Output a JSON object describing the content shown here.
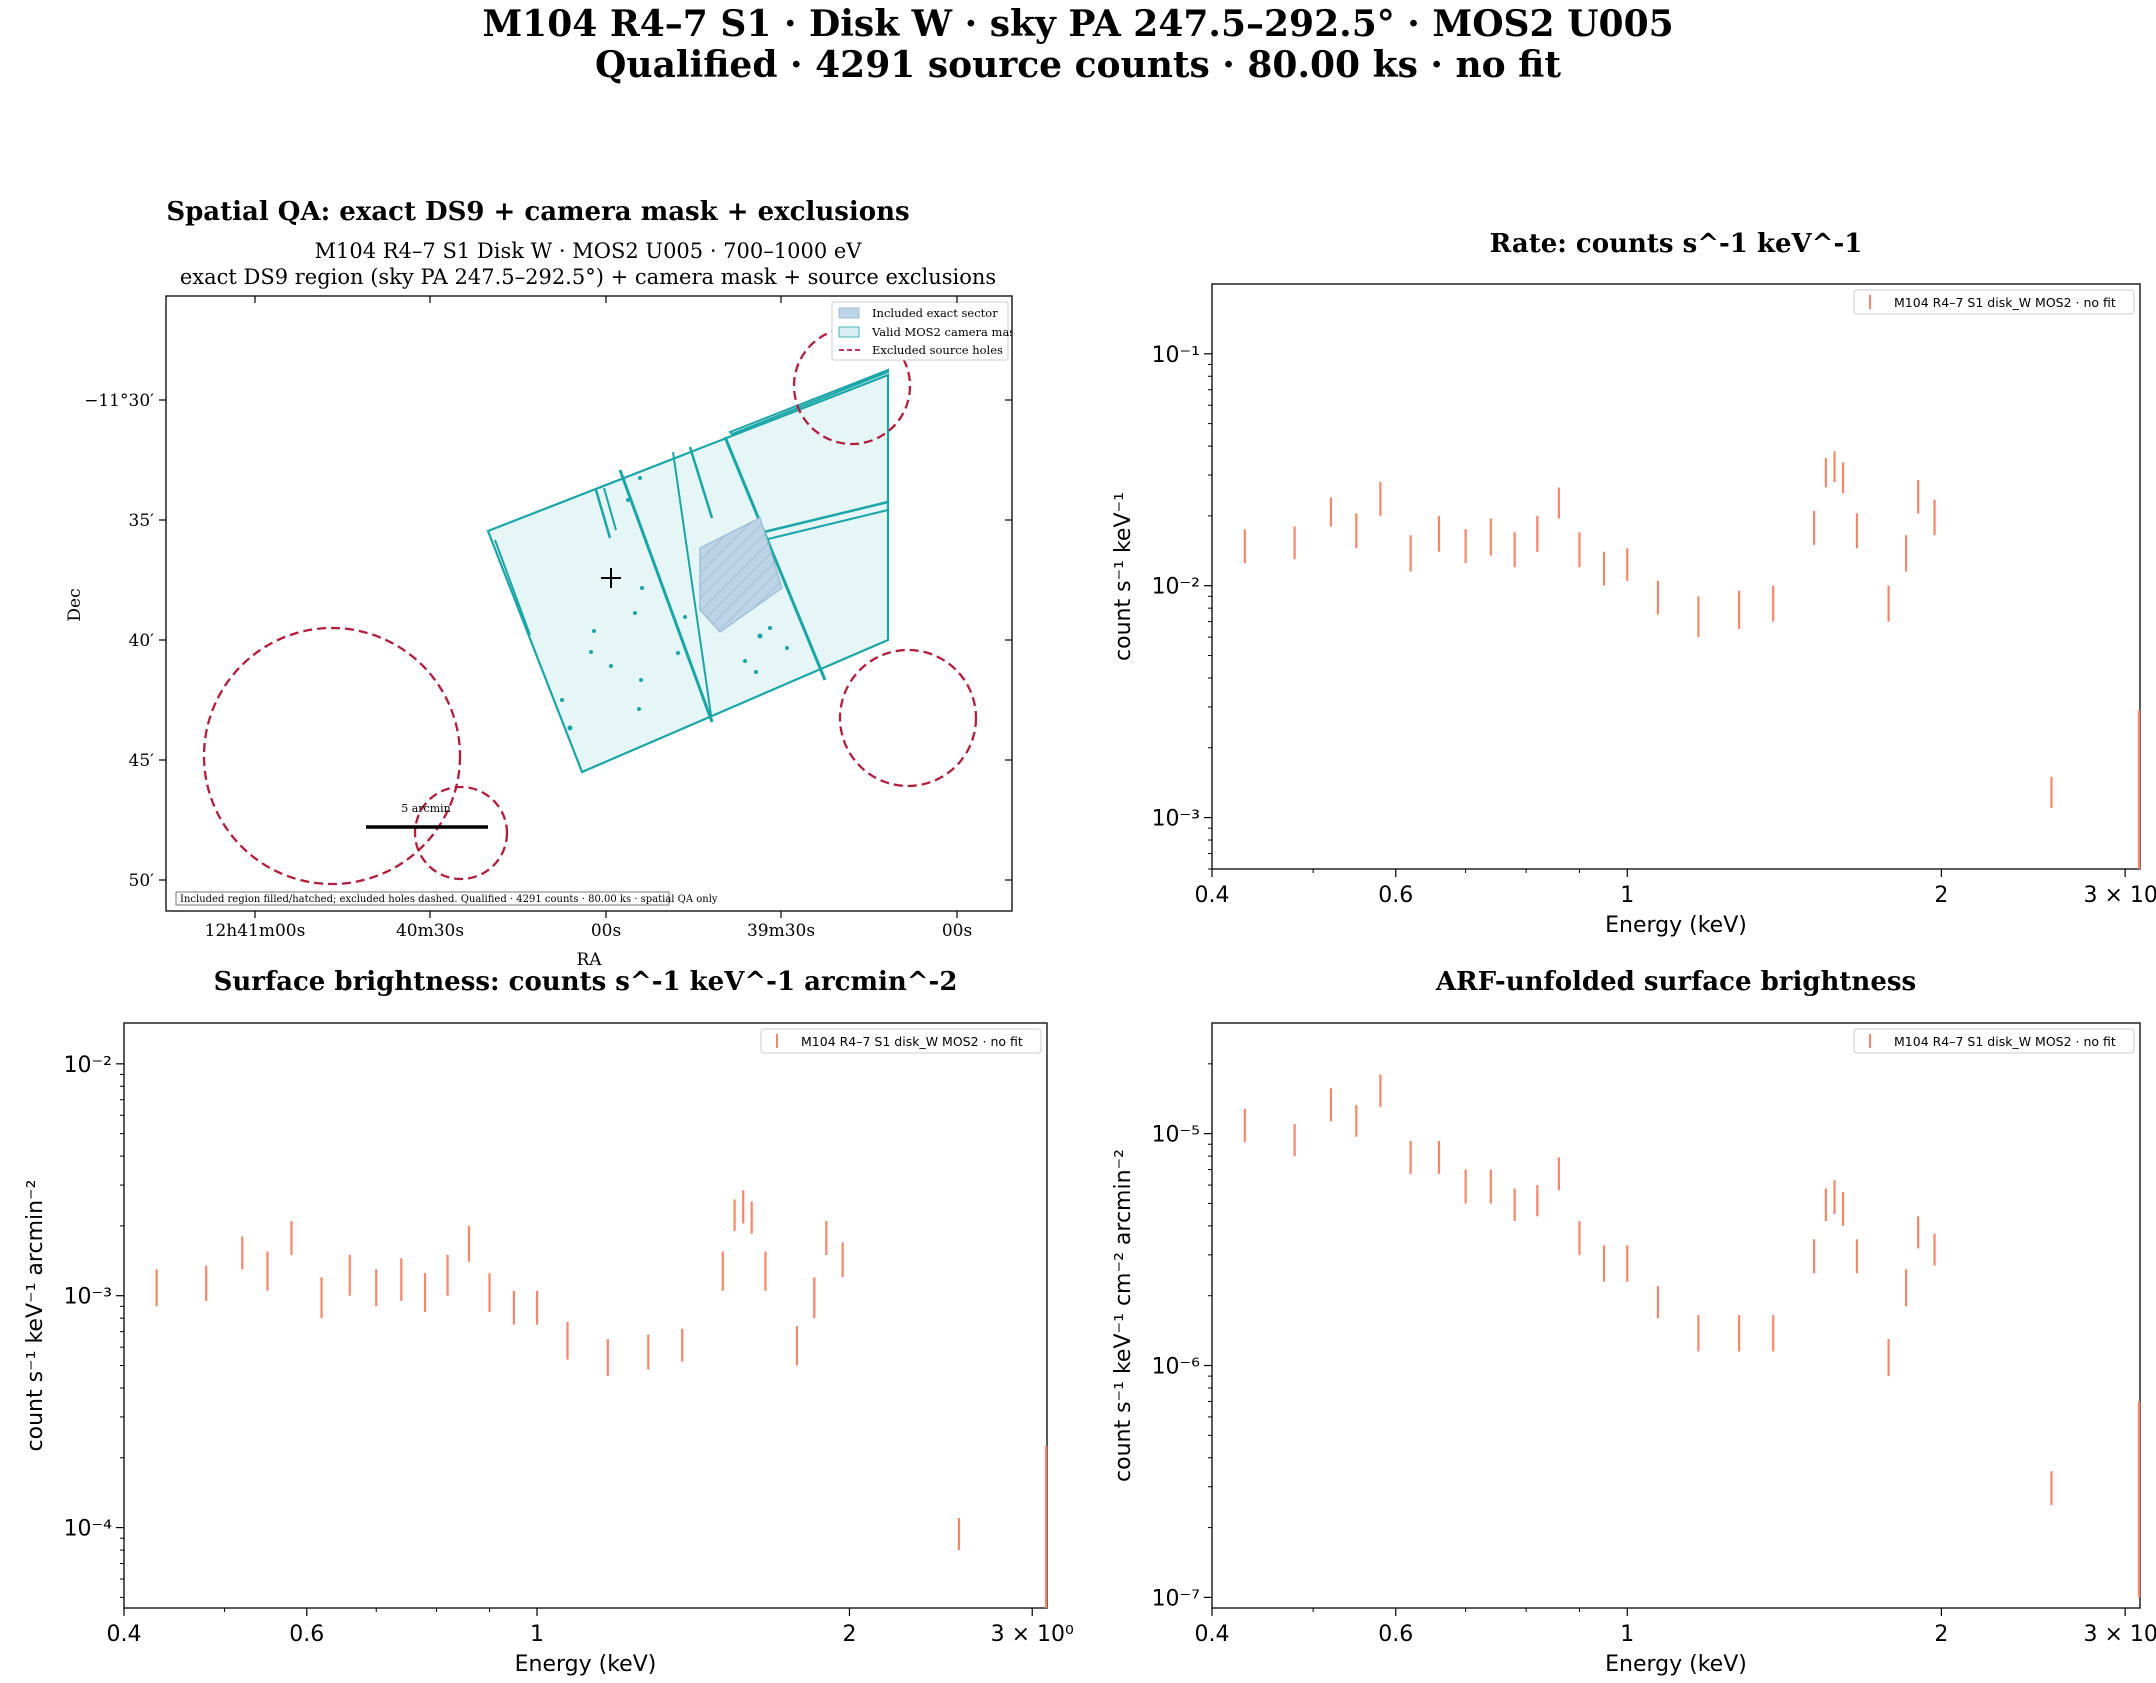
{
  "figure": {
    "title_line1": "M104 R4–7 S1 · Disk W · sky PA 247.5–292.5° · MOS2 U005",
    "title_line2": "Qualified · 4291 source counts · 80.00 ks · no fit"
  },
  "spatial_qa": {
    "title": "Spatial QA: exact DS9 + camera mask + exclusions",
    "subtitle_line1": "M104 R4–7 S1 Disk W · MOS2 U005 · 700–1000 eV",
    "subtitle_line2": "exact DS9 region (sky PA 247.5–292.5°) + camera mask + source exclusions",
    "xlabel": "RA",
    "ylabel": "Dec",
    "ra_ticks": [
      "12h41m00s",
      "40m30s",
      "00s",
      "39m30s",
      "00s"
    ],
    "dec_ticks": [
      "−11°30′",
      "35′",
      "40′",
      "45′",
      "50′"
    ],
    "legend": [
      "Included exact sector",
      "Valid MOS2 camera mask",
      "Excluded source holes"
    ],
    "scalebar_label": "5 arcmin",
    "footnote": "Included region filled/hatched; excluded holes dashed. Qualified · 4291 counts · 80.00 ks · spatial QA only",
    "colors": {
      "mask": "#1aa6a8",
      "mask_fill": "#e6f5f5",
      "sector": "#9fc1d9",
      "holes": "#b01e3c"
    }
  },
  "chart_data": [
    {
      "type": "scatter",
      "title": "Rate: counts s^-1 keV^-1",
      "xlabel": "Energy (keV)",
      "ylabel": "count s⁻¹ keV⁻¹",
      "xscale": "log",
      "yscale": "log",
      "xlim": [
        0.4,
        3.1
      ],
      "ylim": [
        0.0006,
        0.2
      ],
      "x_ticks": [
        "0.4",
        "0.6",
        "1",
        "2",
        "3 × 10⁰"
      ],
      "y_ticks": [
        "10⁻¹",
        "10⁻²",
        "10⁻³"
      ],
      "legend_position": "top-right",
      "series": [
        {
          "name": "M104 R4–7 S1 disk_W MOS2 · no fit",
          "color": "#f4866a",
          "x": [
            0.43,
            0.48,
            0.52,
            0.55,
            0.58,
            0.62,
            0.66,
            0.7,
            0.74,
            0.78,
            0.82,
            0.86,
            0.9,
            0.95,
            1.0,
            1.07,
            1.17,
            1.28,
            1.38,
            1.51,
            1.55,
            1.58,
            1.61,
            1.66,
            1.78,
            1.85,
            1.9,
            1.97,
            2.55,
            3.1
          ],
          "y": [
            0.015,
            0.0155,
            0.021,
            0.0175,
            0.024,
            0.014,
            0.017,
            0.015,
            0.0165,
            0.0145,
            0.017,
            0.023,
            0.0145,
            0.012,
            0.0125,
            0.009,
            0.0075,
            0.008,
            0.0085,
            0.018,
            0.031,
            0.033,
            0.0295,
            0.0175,
            0.0085,
            0.014,
            0.0245,
            0.02,
            0.0013,
            0.0017
          ],
          "yerr_low": [
            0.0025,
            0.0025,
            0.003,
            0.003,
            0.004,
            0.0025,
            0.003,
            0.0025,
            0.003,
            0.0025,
            0.003,
            0.0035,
            0.0025,
            0.002,
            0.002,
            0.0015,
            0.0015,
            0.0015,
            0.0015,
            0.003,
            0.0045,
            0.005,
            0.0045,
            0.003,
            0.0015,
            0.0025,
            0.004,
            0.0035,
            0.0002,
            0.0011
          ],
          "yerr_high": [
            0.0025,
            0.0025,
            0.003,
            0.003,
            0.004,
            0.0025,
            0.003,
            0.0025,
            0.003,
            0.0025,
            0.003,
            0.0035,
            0.0025,
            0.002,
            0.002,
            0.0015,
            0.0015,
            0.0015,
            0.0015,
            0.003,
            0.0045,
            0.005,
            0.0045,
            0.003,
            0.0015,
            0.0025,
            0.004,
            0.0035,
            0.0002,
            0.0012
          ]
        }
      ]
    },
    {
      "type": "scatter",
      "title": "Surface brightness: counts s^-1 keV^-1 arcmin^-2",
      "xlabel": "Energy (keV)",
      "ylabel": "count s⁻¹ keV⁻¹ arcmin⁻²",
      "xscale": "log",
      "yscale": "log",
      "xlim": [
        0.4,
        3.1
      ],
      "ylim": [
        4.5e-05,
        0.015
      ],
      "x_ticks": [
        "0.4",
        "0.6",
        "1",
        "2",
        "3 × 10⁰"
      ],
      "y_ticks": [
        "10⁻²",
        "10⁻³",
        "10⁻⁴"
      ],
      "legend_position": "top-right",
      "series": [
        {
          "name": "M104 R4–7 S1 disk_W MOS2 · no fit",
          "color": "#f4866a",
          "x": [
            0.43,
            0.48,
            0.52,
            0.55,
            0.58,
            0.62,
            0.66,
            0.7,
            0.74,
            0.78,
            0.82,
            0.86,
            0.9,
            0.95,
            1.0,
            1.07,
            1.17,
            1.28,
            1.38,
            1.51,
            1.55,
            1.58,
            1.61,
            1.66,
            1.78,
            1.85,
            1.9,
            1.97,
            2.55,
            3.1
          ],
          "y": [
            0.0011,
            0.00115,
            0.00155,
            0.0013,
            0.0018,
            0.001,
            0.00125,
            0.0011,
            0.0012,
            0.00105,
            0.00125,
            0.0017,
            0.00105,
            0.0009,
            0.0009,
            0.00065,
            0.00055,
            0.00058,
            0.00062,
            0.0013,
            0.00225,
            0.00245,
            0.0022,
            0.0013,
            0.00062,
            0.001,
            0.0018,
            0.00145,
            9.5e-05,
            0.000125
          ],
          "yerr_low": [
            0.0002,
            0.0002,
            0.00025,
            0.00025,
            0.0003,
            0.0002,
            0.00025,
            0.0002,
            0.00025,
            0.0002,
            0.00025,
            0.0003,
            0.0002,
            0.00015,
            0.00015,
            0.00012,
            0.0001,
            0.0001,
            0.0001,
            0.00025,
            0.00035,
            0.0004,
            0.00035,
            0.00025,
            0.00012,
            0.0002,
            0.0003,
            0.00025,
            1.5e-05,
            8e-05
          ],
          "yerr_high": [
            0.0002,
            0.0002,
            0.00025,
            0.00025,
            0.0003,
            0.0002,
            0.00025,
            0.0002,
            0.00025,
            0.0002,
            0.00025,
            0.0003,
            0.0002,
            0.00015,
            0.00015,
            0.00012,
            0.0001,
            0.0001,
            0.0001,
            0.00025,
            0.00035,
            0.0004,
            0.00035,
            0.00025,
            0.00012,
            0.0002,
            0.0003,
            0.00025,
            1.5e-05,
            0.0001
          ]
        }
      ]
    },
    {
      "type": "scatter",
      "title": "ARF-unfolded surface brightness",
      "xlabel": "Energy (keV)",
      "ylabel": "count s⁻¹ keV⁻¹ cm⁻² arcmin⁻²",
      "xscale": "log",
      "yscale": "log",
      "xlim": [
        0.4,
        3.1
      ],
      "ylim": [
        9e-08,
        3e-05
      ],
      "x_ticks": [
        "0.4",
        "0.6",
        "1",
        "2",
        "3 × 10⁰"
      ],
      "y_ticks": [
        "10⁻⁵",
        "10⁻⁶",
        "10⁻⁷"
      ],
      "legend_position": "top-right",
      "series": [
        {
          "name": "M104 R4–7 S1 disk_W MOS2 · no fit",
          "color": "#f4866a",
          "x": [
            0.43,
            0.48,
            0.52,
            0.55,
            0.58,
            0.62,
            0.66,
            0.7,
            0.74,
            0.78,
            0.82,
            0.86,
            0.9,
            0.95,
            1.0,
            1.07,
            1.17,
            1.28,
            1.38,
            1.51,
            1.55,
            1.58,
            1.61,
            1.66,
            1.78,
            1.85,
            1.9,
            1.97,
            2.55,
            3.1
          ],
          "y": [
            1.1e-05,
            9.5e-06,
            1.35e-05,
            1.15e-05,
            1.55e-05,
            8e-06,
            8e-06,
            6e-06,
            6e-06,
            5e-06,
            5.2e-06,
            6.8e-06,
            3.6e-06,
            2.8e-06,
            2.8e-06,
            1.9e-06,
            1.4e-06,
            1.4e-06,
            1.4e-06,
            3e-06,
            5e-06,
            5.4e-06,
            4.8e-06,
            3e-06,
            1.1e-06,
            2.2e-06,
            3.8e-06,
            3.2e-06,
            3e-07,
            4e-07
          ],
          "yerr_low": [
            1.8e-06,
            1.5e-06,
            2.2e-06,
            1.8e-06,
            2.5e-06,
            1.3e-06,
            1.3e-06,
            1e-06,
            1e-06,
            8e-07,
            8e-07,
            1.1e-06,
            6e-07,
            5e-07,
            5e-07,
            3e-07,
            2.5e-07,
            2.5e-07,
            2.5e-07,
            5e-07,
            8e-07,
            9e-07,
            8e-07,
            5e-07,
            2e-07,
            4e-07,
            6e-07,
            5e-07,
            5e-08,
            3e-07
          ],
          "yerr_high": [
            1.8e-06,
            1.5e-06,
            2.2e-06,
            1.8e-06,
            2.5e-06,
            1.3e-06,
            1.3e-06,
            1e-06,
            1e-06,
            8e-07,
            8e-07,
            1.1e-06,
            6e-07,
            5e-07,
            5e-07,
            3e-07,
            2.5e-07,
            2.5e-07,
            2.5e-07,
            5e-07,
            8e-07,
            9e-07,
            8e-07,
            5e-07,
            2e-07,
            4e-07,
            6e-07,
            5e-07,
            5e-08,
            3e-07
          ]
        }
      ]
    }
  ]
}
